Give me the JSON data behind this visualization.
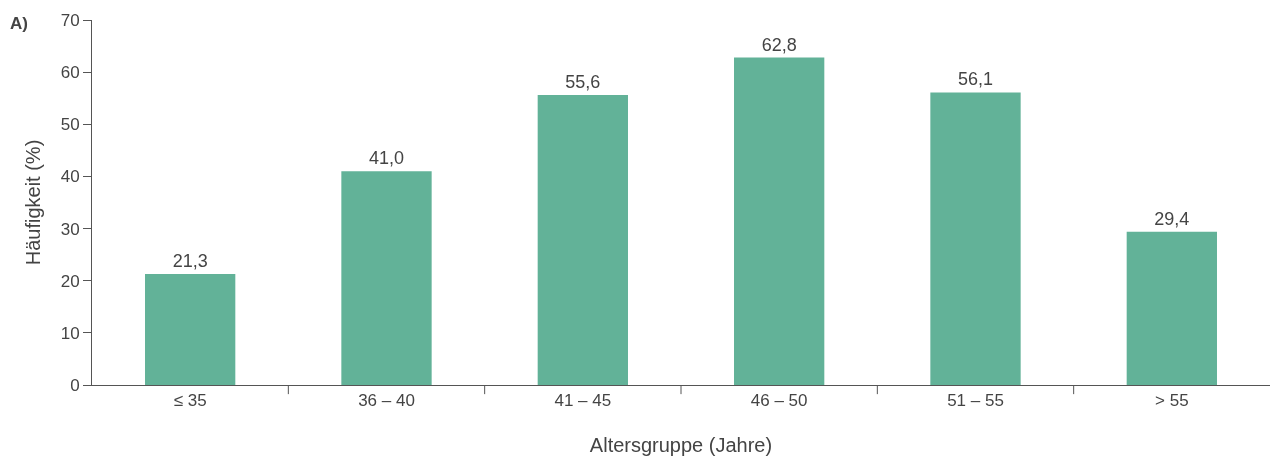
{
  "chart_data": {
    "type": "bar",
    "annotations": [
      "A)"
    ],
    "xlabel": "Altersgruppe (Jahre)",
    "ylabel": "Häufigkeit (%)",
    "categories": [
      "≤ 35",
      "36 – 40",
      "41 – 45",
      "46 – 50",
      "51 – 55",
      "> 55"
    ],
    "values": [
      21.3,
      41.0,
      55.6,
      62.8,
      56.1,
      29.4
    ],
    "value_labels": [
      "21,3",
      "41,0",
      "55,6",
      "62,8",
      "56,1",
      "29,4"
    ],
    "color": "#62b298",
    "ylim": [
      0,
      70
    ],
    "yticks": [
      0,
      10,
      20,
      30,
      40,
      50,
      60,
      70
    ],
    "grid": false,
    "legend": false
  }
}
